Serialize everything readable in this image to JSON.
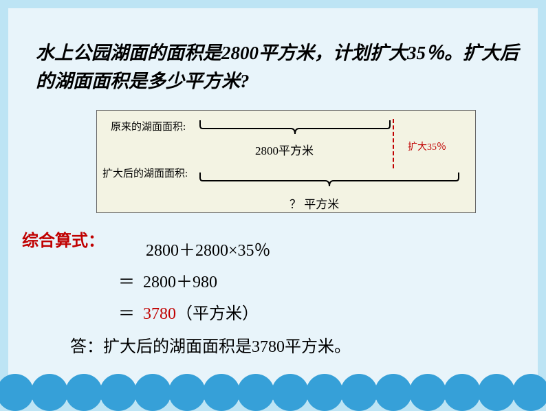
{
  "question_text": "水上公园湖面的面积是2800平方米，计划扩大35％。扩大后的湖面面积是多少平方米?",
  "diagram": {
    "label_original": "原来的湖面面积:",
    "label_expanded": "扩大后的湖面面积:",
    "value_original": "2800平方米",
    "expand_text": "扩大35％",
    "value_question": "？ 平方米",
    "brace_color": "#000000",
    "dashed_color": "#c00000",
    "bg_color": "#f3f3e3"
  },
  "formula_label": "综合算式：",
  "calc": {
    "line1": "2800＋2800×35％",
    "line2_eq": "＝",
    "line2": "2800＋980",
    "line3_eq": "＝",
    "line3_result": "3780",
    "line3_unit": "（平方米）"
  },
  "answer_text": "答：扩大后的湖面面积是3780平方米。",
  "colors": {
    "outer_bg": "#bde4f4",
    "inner_bg": "#e8f4fa",
    "wave": "#36a0d8",
    "red": "#c00000",
    "black": "#000000"
  },
  "wave": {
    "count": 16,
    "diameter": 54,
    "spacing": 50
  }
}
